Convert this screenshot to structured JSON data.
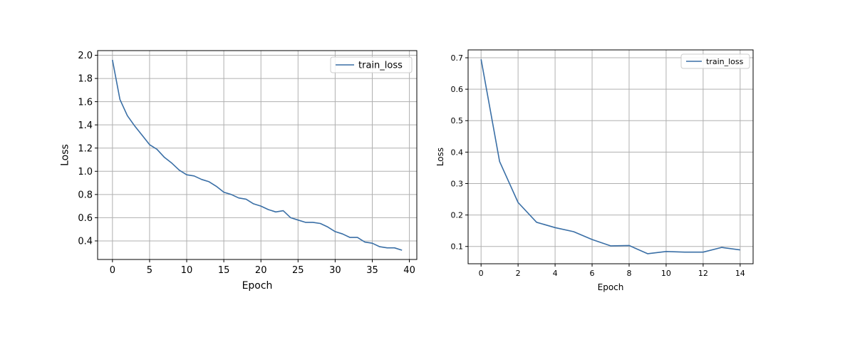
{
  "chart_data": [
    {
      "type": "line",
      "title": "",
      "xlabel": "Epoch",
      "ylabel": "Loss",
      "xlim": [
        -2,
        41
      ],
      "ylim": [
        0.24,
        2.04
      ],
      "xticks": [
        0,
        5,
        10,
        15,
        20,
        25,
        30,
        35,
        40
      ],
      "yticks": [
        0.4,
        0.6,
        0.8,
        1.0,
        1.2,
        1.4,
        1.6,
        1.8,
        2.0
      ],
      "xtick_labels": [
        "0",
        "5",
        "10",
        "15",
        "20",
        "25",
        "30",
        "35",
        "40"
      ],
      "ytick_labels": [
        "0.4",
        "0.6",
        "0.8",
        "1.0",
        "1.2",
        "1.4",
        "1.6",
        "1.8",
        "2.0"
      ],
      "grid": true,
      "legend_position": "top-right",
      "series": [
        {
          "name": "train_loss",
          "color": "#3a6fa6",
          "x": [
            0,
            1,
            2,
            3,
            4,
            5,
            6,
            7,
            8,
            9,
            10,
            11,
            12,
            13,
            14,
            15,
            16,
            17,
            18,
            19,
            20,
            21,
            22,
            23,
            24,
            25,
            26,
            27,
            28,
            29,
            30,
            31,
            32,
            33,
            34,
            35,
            36,
            37,
            38,
            39
          ],
          "y": [
            1.96,
            1.62,
            1.48,
            1.39,
            1.31,
            1.23,
            1.19,
            1.12,
            1.07,
            1.01,
            0.97,
            0.96,
            0.93,
            0.91,
            0.87,
            0.82,
            0.8,
            0.77,
            0.76,
            0.72,
            0.7,
            0.67,
            0.65,
            0.66,
            0.6,
            0.58,
            0.56,
            0.56,
            0.55,
            0.52,
            0.48,
            0.46,
            0.43,
            0.43,
            0.39,
            0.38,
            0.35,
            0.34,
            0.34,
            0.32
          ]
        }
      ]
    },
    {
      "type": "line",
      "title": "",
      "xlabel": "Epoch",
      "ylabel": "Loss",
      "xlim": [
        -0.7,
        14.7
      ],
      "ylim": [
        0.045,
        0.725
      ],
      "xticks": [
        0,
        2,
        4,
        6,
        8,
        10,
        12,
        14
      ],
      "yticks": [
        0.1,
        0.2,
        0.3,
        0.4,
        0.5,
        0.6,
        0.7
      ],
      "xtick_labels": [
        "0",
        "2",
        "4",
        "6",
        "8",
        "10",
        "12",
        "14"
      ],
      "ytick_labels": [
        "0.1",
        "0.2",
        "0.3",
        "0.4",
        "0.5",
        "0.6",
        "0.7"
      ],
      "grid": true,
      "legend_position": "top-right",
      "series": [
        {
          "name": "train_loss",
          "color": "#3a6fa6",
          "x": [
            0,
            1,
            2,
            3,
            4,
            5,
            6,
            7,
            8,
            9,
            10,
            11,
            12,
            13,
            14
          ],
          "y": [
            0.695,
            0.37,
            0.24,
            0.177,
            0.16,
            0.147,
            0.122,
            0.102,
            0.103,
            0.077,
            0.084,
            0.082,
            0.082,
            0.097,
            0.089
          ]
        }
      ]
    }
  ]
}
